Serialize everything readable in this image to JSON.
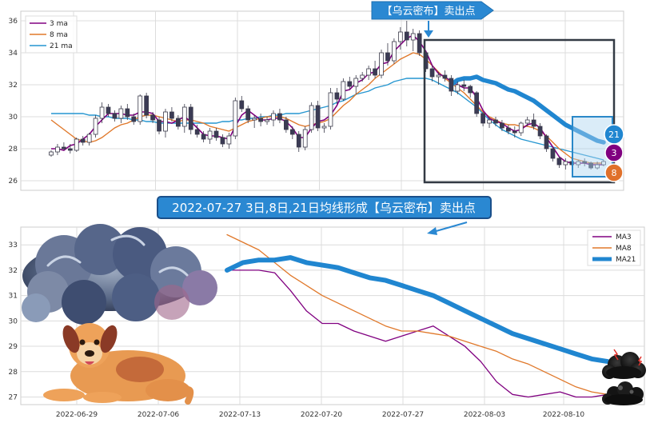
{
  "chart_data": [
    {
      "type": "candlestick",
      "panel": "top",
      "title": "",
      "ylim": [
        25.4,
        36.6
      ],
      "yticks": [
        "26",
        "28",
        "30",
        "32",
        "34",
        "36"
      ],
      "grid": true,
      "legend": {
        "placement": "top-left",
        "entries": [
          {
            "name": "3 ma",
            "color": "#800080"
          },
          {
            "name": "8 ma",
            "color": "#e0782a"
          },
          {
            "name": "21 ma",
            "color": "#2596d0"
          }
        ]
      },
      "callout": "【乌云密布】卖出点",
      "markers": [
        {
          "label": "21",
          "color": "#2086d0"
        },
        {
          "label": "3",
          "color": "#800080"
        },
        {
          "label": "8",
          "color": "#e0702a"
        }
      ],
      "candles": [
        [
          27.6,
          27.9,
          27.5,
          27.8
        ],
        [
          27.8,
          28.3,
          27.6,
          28.1
        ],
        [
          28.1,
          28.4,
          27.9,
          28.0
        ],
        [
          28.0,
          28.3,
          27.7,
          27.9
        ],
        [
          27.9,
          28.7,
          27.8,
          28.6
        ],
        [
          28.6,
          28.8,
          28.2,
          28.4
        ],
        [
          28.4,
          29.0,
          28.2,
          28.9
        ],
        [
          28.9,
          30.1,
          28.7,
          29.9
        ],
        [
          29.9,
          30.9,
          29.6,
          30.6
        ],
        [
          30.6,
          30.8,
          30.0,
          30.2
        ],
        [
          30.2,
          30.4,
          29.7,
          29.9
        ],
        [
          29.9,
          30.7,
          29.6,
          30.5
        ],
        [
          30.5,
          30.8,
          29.8,
          30.0
        ],
        [
          30.0,
          30.2,
          29.5,
          29.7
        ],
        [
          29.7,
          31.4,
          29.5,
          31.3
        ],
        [
          31.3,
          31.5,
          29.9,
          30.1
        ],
        [
          30.1,
          30.3,
          29.6,
          29.8
        ],
        [
          29.8,
          30.0,
          28.9,
          29.1
        ],
        [
          29.1,
          30.5,
          28.7,
          30.3
        ],
        [
          30.3,
          30.6,
          29.7,
          29.9
        ],
        [
          29.9,
          30.1,
          29.2,
          29.4
        ],
        [
          29.4,
          30.8,
          29.0,
          30.6
        ],
        [
          30.6,
          30.8,
          28.9,
          29.2
        ],
        [
          29.2,
          29.5,
          28.7,
          28.9
        ],
        [
          28.9,
          29.1,
          28.4,
          28.6
        ],
        [
          28.6,
          29.3,
          28.3,
          29.1
        ],
        [
          29.1,
          29.3,
          28.5,
          28.7
        ],
        [
          28.7,
          28.9,
          28.1,
          28.3
        ],
        [
          28.3,
          29.0,
          28.0,
          28.8
        ],
        [
          28.8,
          31.2,
          28.6,
          31.0
        ],
        [
          31.0,
          31.3,
          30.3,
          30.5
        ],
        [
          30.5,
          30.7,
          29.6,
          29.8
        ],
        [
          29.8,
          30.1,
          29.3,
          29.9
        ],
        [
          29.9,
          30.2,
          29.4,
          29.7
        ],
        [
          29.7,
          30.0,
          29.5,
          29.8
        ],
        [
          29.8,
          30.4,
          29.4,
          30.2
        ],
        [
          30.2,
          30.5,
          29.6,
          29.8
        ],
        [
          29.8,
          30.0,
          29.0,
          29.2
        ],
        [
          29.2,
          29.4,
          28.6,
          28.9
        ],
        [
          28.9,
          29.1,
          27.8,
          28.1
        ],
        [
          28.1,
          29.4,
          27.9,
          29.2
        ],
        [
          29.2,
          30.9,
          29.0,
          30.7
        ],
        [
          30.7,
          31.0,
          29.1,
          29.3
        ],
        [
          29.3,
          29.6,
          29.0,
          29.4
        ],
        [
          29.4,
          31.8,
          29.2,
          31.5
        ],
        [
          31.5,
          31.8,
          30.8,
          31.1
        ],
        [
          31.1,
          32.4,
          31.0,
          32.2
        ],
        [
          32.2,
          32.5,
          31.7,
          31.9
        ],
        [
          31.9,
          32.6,
          31.4,
          32.4
        ],
        [
          32.4,
          32.8,
          32.2,
          32.6
        ],
        [
          32.6,
          33.2,
          32.3,
          33.0
        ],
        [
          33.0,
          33.5,
          32.4,
          32.6
        ],
        [
          32.6,
          34.2,
          32.4,
          34.0
        ],
        [
          34.0,
          34.6,
          33.2,
          33.5
        ],
        [
          33.5,
          34.9,
          33.3,
          34.7
        ],
        [
          34.7,
          35.6,
          34.2,
          35.3
        ],
        [
          35.3,
          36.0,
          34.4,
          34.8
        ],
        [
          34.8,
          35.5,
          34.1,
          35.2
        ],
        [
          35.2,
          35.4,
          33.8,
          34.0
        ],
        [
          34.0,
          34.1,
          32.8,
          33.0
        ],
        [
          33.0,
          33.2,
          32.2,
          32.5
        ],
        [
          32.5,
          32.8,
          32.0,
          32.6
        ],
        [
          32.6,
          32.9,
          32.2,
          32.4
        ],
        [
          32.4,
          32.6,
          31.3,
          31.6
        ],
        [
          31.6,
          32.2,
          31.4,
          32.0
        ],
        [
          32.0,
          32.3,
          31.6,
          31.9
        ],
        [
          31.9,
          32.0,
          31.2,
          31.5
        ],
        [
          31.5,
          31.6,
          30.0,
          30.2
        ],
        [
          30.2,
          30.3,
          29.4,
          29.6
        ],
        [
          29.6,
          30.0,
          29.3,
          29.8
        ],
        [
          29.8,
          30.0,
          29.4,
          29.6
        ],
        [
          29.6,
          29.8,
          29.1,
          29.3
        ],
        [
          29.3,
          29.5,
          28.9,
          29.1
        ],
        [
          29.1,
          29.4,
          28.7,
          29.0
        ],
        [
          29.0,
          29.7,
          28.8,
          29.6
        ],
        [
          29.6,
          30.0,
          29.4,
          29.8
        ],
        [
          29.8,
          30.2,
          29.2,
          29.4
        ],
        [
          29.4,
          29.6,
          28.6,
          28.8
        ],
        [
          28.8,
          28.9,
          27.8,
          28.0
        ],
        [
          28.0,
          28.1,
          27.2,
          27.4
        ],
        [
          27.4,
          27.5,
          26.8,
          27.0
        ],
        [
          27.0,
          27.4,
          26.7,
          27.2
        ],
        [
          27.2,
          27.5,
          26.9,
          27.0
        ],
        [
          27.0,
          27.3,
          26.8,
          27.2
        ],
        [
          27.2,
          27.4,
          26.9,
          27.1
        ],
        [
          27.1,
          27.2,
          26.7,
          26.8
        ],
        [
          26.8,
          27.2,
          26.7,
          27.0
        ],
        [
          27.0,
          27.3,
          26.9,
          27.2
        ]
      ],
      "ma3": [
        28.0,
        28.0,
        27.9,
        28.2,
        28.3,
        28.6,
        28.9,
        29.4,
        29.8,
        30.2,
        30.2,
        30.2,
        30.1,
        30.1,
        30.3,
        30.3,
        30.2,
        29.7,
        29.7,
        29.6,
        29.8,
        30.0,
        29.7,
        29.3,
        28.9,
        28.8,
        28.8,
        28.7,
        28.6,
        29.4,
        30.1,
        30.4,
        30.1,
        29.8,
        29.8,
        29.9,
        29.9,
        29.7,
        29.3,
        28.7,
        28.7,
        29.3,
        29.7,
        29.8,
        30.1,
        30.7,
        31.6,
        31.7,
        32.1,
        32.3,
        32.7,
        32.8,
        33.3,
        33.4,
        34.1,
        34.5,
        34.9,
        35.1,
        34.7,
        34.1,
        33.2,
        32.7,
        32.5,
        32.2,
        32.0,
        31.8,
        31.8,
        31.2,
        30.4,
        29.9,
        29.7,
        29.6,
        29.3,
        29.1,
        29.2,
        29.5,
        29.6,
        29.3,
        28.7,
        28.1,
        27.5,
        27.2,
        27.1,
        27.1,
        27.1,
        27.0,
        27.0,
        27.0
      ],
      "ma8": [
        29.8,
        29.5,
        29.2,
        28.9,
        28.6,
        28.5,
        28.4,
        28.5,
        28.7,
        29.0,
        29.3,
        29.5,
        29.6,
        29.8,
        30.0,
        30.1,
        30.1,
        30.0,
        29.9,
        29.8,
        29.7,
        29.8,
        29.8,
        29.7,
        29.6,
        29.4,
        29.3,
        29.2,
        29.1,
        29.3,
        29.5,
        29.7,
        29.8,
        29.9,
        30.0,
        30.0,
        30.0,
        29.9,
        29.7,
        29.5,
        29.4,
        29.5,
        29.6,
        29.7,
        29.9,
        30.3,
        30.7,
        31.0,
        31.4,
        31.7,
        32.0,
        32.4,
        32.7,
        33.0,
        33.3,
        33.6,
        33.8,
        34.0,
        33.9,
        33.6,
        33.2,
        32.8,
        32.4,
        32.1,
        31.8,
        31.5,
        31.1,
        30.7,
        30.3,
        30.0,
        29.8,
        29.6,
        29.5,
        29.5,
        29.4,
        29.4,
        29.3,
        29.1,
        28.8,
        28.4,
        28.0,
        27.7,
        27.4,
        27.3,
        27.2,
        27.1,
        27.1,
        27.1
      ],
      "ma21": [
        30.2,
        30.2,
        30.2,
        30.2,
        30.2,
        30.2,
        30.1,
        30.1,
        30.0,
        30.0,
        29.9,
        29.9,
        29.9,
        29.8,
        29.8,
        29.7,
        29.7,
        29.6,
        29.6,
        29.6,
        29.6,
        29.6,
        29.6,
        29.6,
        29.6,
        29.6,
        29.6,
        29.7,
        29.7,
        29.8,
        29.8,
        29.9,
        29.9,
        30.0,
        30.0,
        30.1,
        30.1,
        30.2,
        30.2,
        30.2,
        30.3,
        30.4,
        30.5,
        30.6,
        30.7,
        30.9,
        31.0,
        31.2,
        31.4,
        31.5,
        31.6,
        31.8,
        31.9,
        32.0,
        32.2,
        32.3,
        32.4,
        32.4,
        32.4,
        32.4,
        32.3,
        32.1,
        31.9,
        31.7,
        31.5,
        31.2,
        30.9,
        30.6,
        30.2,
        29.8,
        29.5,
        29.2,
        29.0,
        28.8,
        28.6,
        28.5,
        28.4,
        28.3,
        28.2,
        28.1,
        28.0,
        27.9,
        27.8,
        27.7,
        27.6,
        27.5,
        27.4,
        27.3
      ]
    },
    {
      "type": "line",
      "panel": "bottom",
      "title": "2022-07-27 3日,8日,21日均线形成【乌云密布】卖出点",
      "ylim": [
        26.7,
        33.7
      ],
      "yticks": [
        "27",
        "28",
        "29",
        "30",
        "31",
        "32",
        "33"
      ],
      "xticks": [
        "2022-06-29",
        "2022-07-06",
        "2022-07-13",
        "2022-07-20",
        "2022-07-27",
        "2022-08-03",
        "2022-08-10"
      ],
      "grid": true,
      "legend": {
        "placement": "top-right"
      },
      "series": [
        {
          "name": "MA3",
          "color": "#800080",
          "values": [
            32.0,
            32.0,
            32.0,
            31.9,
            31.2,
            30.4,
            29.9,
            29.9,
            29.6,
            29.4,
            29.2,
            29.4,
            29.6,
            29.8,
            29.4,
            29.0,
            28.4,
            27.6,
            27.1,
            27.0,
            27.1,
            27.2,
            27.0,
            27.0,
            27.1
          ]
        },
        {
          "name": "MA8",
          "color": "#e0782a",
          "values": [
            33.4,
            33.1,
            32.8,
            32.3,
            31.8,
            31.4,
            31.0,
            30.7,
            30.4,
            30.1,
            29.8,
            29.6,
            29.6,
            29.5,
            29.4,
            29.2,
            29.0,
            28.8,
            28.5,
            28.3,
            28.0,
            27.7,
            27.4,
            27.2,
            27.1
          ]
        },
        {
          "name": "MA21",
          "color": "#2086d0",
          "values": [
            32.0,
            32.3,
            32.4,
            32.4,
            32.5,
            32.3,
            32.2,
            32.1,
            31.9,
            31.7,
            31.6,
            31.4,
            31.2,
            31.0,
            30.7,
            30.4,
            30.1,
            29.8,
            29.5,
            29.3,
            29.1,
            28.9,
            28.7,
            28.5,
            28.4
          ]
        }
      ]
    }
  ]
}
